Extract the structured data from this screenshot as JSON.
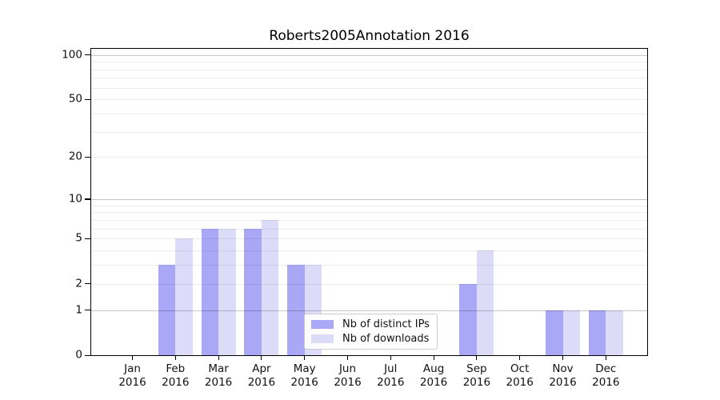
{
  "title": "Roberts2005Annotation 2016",
  "chart_data": {
    "type": "bar",
    "title": "Roberts2005Annotation 2016",
    "categories": [
      "Jan 2016",
      "Feb 2016",
      "Mar 2016",
      "Apr 2016",
      "May 2016",
      "Jun 2016",
      "Jul 2016",
      "Aug 2016",
      "Sep 2016",
      "Oct 2016",
      "Nov 2016",
      "Dec 2016"
    ],
    "series": [
      {
        "name": "Nb of distinct IPs",
        "color": "#a8a8f6",
        "values": [
          0,
          3,
          6,
          6,
          3,
          0,
          0,
          0,
          2,
          0,
          1,
          1
        ]
      },
      {
        "name": "Nb of downloads",
        "color": "#dcdcf8",
        "values": [
          0,
          5,
          6,
          7,
          3,
          0,
          0,
          0,
          4,
          0,
          1,
          1
        ]
      }
    ],
    "xlabel": "",
    "ylabel": "",
    "yscale": "log1p",
    "ylim": [
      0,
      110
    ],
    "y_ticks": [
      0,
      1,
      2,
      5,
      10,
      20,
      50,
      100
    ],
    "y_major_gridlines": [
      1,
      10,
      100
    ],
    "y_minor_gridlines": [
      2,
      3,
      4,
      5,
      6,
      7,
      8,
      9,
      20,
      30,
      40,
      50,
      60,
      70,
      80,
      90
    ],
    "grid": true,
    "legend": {
      "position": "lower center",
      "entries": [
        "Nb of distinct IPs",
        "Nb of downloads"
      ]
    }
  },
  "colors": {
    "distinct_ips": "#a8a8f6",
    "downloads": "#dcdcf8",
    "major_grid": "#c7c7c7",
    "minor_grid": "#ededed",
    "spine": "#000000"
  }
}
